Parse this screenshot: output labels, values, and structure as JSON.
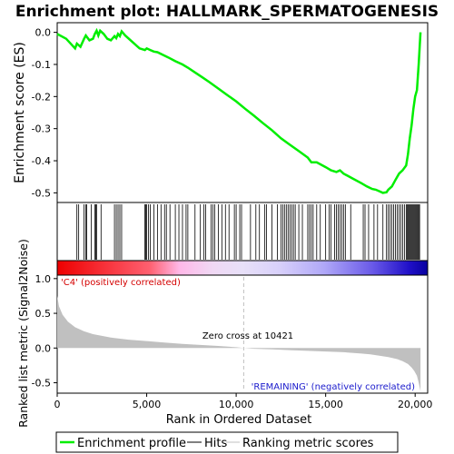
{
  "title": "Enrichment plot: HALLMARK_SPERMATOGENESIS",
  "colors": {
    "enrichment_line": "#00ee00",
    "hit_line": "#000000",
    "metric_fill": "#c0c0c0",
    "pos_label": "#d40000",
    "neg_label": "#1a1acc",
    "zero_line": "#c0c0c0"
  },
  "legend": [
    {
      "label": "Enrichment profile",
      "color": "#00ee00"
    },
    {
      "label": "Hits",
      "color": "#000000"
    },
    {
      "label": "Ranking metric scores",
      "color": "#c0c0c0"
    }
  ],
  "chart_data": [
    {
      "type": "line",
      "panel": "enrichment",
      "ylabel": "Enrichment score (ES)",
      "ylim": [
        -0.53,
        0.03
      ],
      "yticks": [
        "0.0",
        "-0.1",
        "-0.2",
        "-0.3",
        "-0.4",
        "-0.5"
      ],
      "xlim": [
        0,
        20700
      ],
      "series": [
        {
          "name": "Enrichment profile",
          "x": [
            0,
            500,
            1000,
            1100,
            1300,
            1500,
            1600,
            1800,
            2000,
            2100,
            2200,
            2300,
            2400,
            2600,
            2800,
            3000,
            3200,
            3300,
            3400,
            3500,
            3600,
            3800,
            4200,
            4600,
            4900,
            5000,
            5200,
            5400,
            5600,
            5900,
            6200,
            6600,
            7000,
            7300,
            7700,
            8100,
            8500,
            9000,
            9500,
            10000,
            10500,
            11000,
            11500,
            12000,
            12500,
            13000,
            13500,
            14000,
            14200,
            14500,
            15000,
            15300,
            15600,
            15800,
            16000,
            16500,
            17000,
            17300,
            17600,
            17800,
            18000,
            18200,
            18400,
            18500,
            18700,
            18900,
            19100,
            19300,
            19500,
            19600,
            19700,
            19800,
            19900,
            20000,
            20100,
            20200,
            20250,
            20300
          ],
          "values": [
            -0.005,
            -0.02,
            -0.05,
            -0.035,
            -0.045,
            -0.02,
            -0.01,
            -0.025,
            -0.02,
            -0.005,
            0.005,
            -0.01,
            0.005,
            -0.005,
            -0.02,
            -0.025,
            -0.012,
            -0.018,
            -0.005,
            -0.012,
            0.003,
            -0.01,
            -0.03,
            -0.05,
            -0.055,
            -0.05,
            -0.055,
            -0.06,
            -0.062,
            -0.07,
            -0.078,
            -0.09,
            -0.1,
            -0.11,
            -0.125,
            -0.14,
            -0.155,
            -0.175,
            -0.195,
            -0.215,
            -0.238,
            -0.26,
            -0.283,
            -0.305,
            -0.33,
            -0.35,
            -0.37,
            -0.39,
            -0.405,
            -0.405,
            -0.42,
            -0.43,
            -0.435,
            -0.43,
            -0.44,
            -0.455,
            -0.47,
            -0.48,
            -0.488,
            -0.49,
            -0.495,
            -0.5,
            -0.498,
            -0.49,
            -0.48,
            -0.46,
            -0.44,
            -0.43,
            -0.415,
            -0.38,
            -0.33,
            -0.29,
            -0.24,
            -0.2,
            -0.18,
            -0.1,
            -0.05,
            0.0
          ]
        }
      ]
    },
    {
      "type": "line",
      "panel": "hits",
      "series": [
        {
          "name": "Hits",
          "x": [
            1100,
            1200,
            1500,
            1600,
            1650,
            1900,
            2100,
            2150,
            2200,
            2450,
            3200,
            3300,
            3400,
            3500,
            3600,
            4900,
            4950,
            5000,
            5100,
            5200,
            5400,
            5600,
            5800,
            6000,
            6100,
            6300,
            6600,
            6800,
            7000,
            7200,
            7300,
            7700,
            8000,
            8200,
            8300,
            8600,
            8700,
            8800,
            9000,
            9200,
            9400,
            9600,
            9900,
            10000,
            10200,
            10300,
            10800,
            11100,
            11300,
            11600,
            11700,
            12000,
            12300,
            12500,
            12600,
            12700,
            12800,
            12900,
            13000,
            13100,
            13200,
            13300,
            13500,
            13700,
            14000,
            14100,
            14200,
            14300,
            14500,
            14700,
            15000,
            15200,
            15300,
            15500,
            15600,
            15700,
            15800,
            15900,
            16000,
            16100,
            16400,
            17100,
            17200,
            17400,
            17700,
            17900,
            18200,
            18400,
            18500,
            18600,
            18700,
            18800,
            18900,
            19000,
            19100,
            19200,
            19300,
            19400,
            19500,
            19550,
            19600,
            19650,
            19700,
            19750,
            19800,
            19850,
            19900,
            19950,
            20000,
            20050,
            20100,
            20150,
            20200,
            20250
          ]
        }
      ]
    },
    {
      "type": "area",
      "panel": "ranked-metric",
      "ylabel": "Ranked list metric (Signal2Noise)",
      "xlabel": "Rank in Ordered Dataset",
      "xlim": [
        0,
        20700
      ],
      "ylim": [
        -0.65,
        1.05
      ],
      "xticks": [
        "0",
        "5,000",
        "10,000",
        "15,000",
        "20,000"
      ],
      "yticks": [
        "1.0",
        "0.5",
        "0.0",
        "-0.5"
      ],
      "zero_cross_label": "Zero cross at 10421",
      "zero_cross": 10421,
      "pos_label": "'C4' (positively correlated)",
      "neg_label": "'REMAINING' (negatively correlated)",
      "series": [
        {
          "name": "Ranking metric scores",
          "x": [
            0,
            100,
            300,
            600,
            1000,
            1500,
            2000,
            3000,
            4000,
            5000,
            6000,
            7000,
            8000,
            9000,
            10000,
            10421,
            11000,
            12000,
            13000,
            14000,
            15000,
            16000,
            17000,
            17500,
            18000,
            18500,
            19000,
            19300,
            19600,
            19800,
            19950,
            20100,
            20200,
            20300
          ],
          "values": [
            0.75,
            0.6,
            0.48,
            0.38,
            0.3,
            0.24,
            0.2,
            0.15,
            0.12,
            0.1,
            0.08,
            0.06,
            0.045,
            0.03,
            0.012,
            0.0,
            -0.01,
            -0.02,
            -0.03,
            -0.04,
            -0.05,
            -0.06,
            -0.08,
            -0.09,
            -0.11,
            -0.13,
            -0.16,
            -0.19,
            -0.23,
            -0.28,
            -0.33,
            -0.4,
            -0.5,
            -0.62
          ]
        }
      ]
    }
  ]
}
